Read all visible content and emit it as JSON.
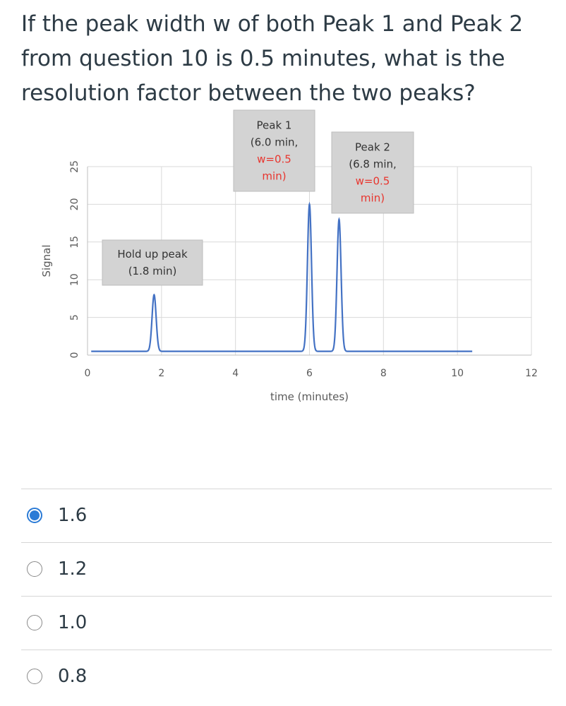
{
  "question": {
    "text": "If the peak width w of both Peak 1 and Peak 2 from question 10 is 0.5 minutes, what is the resolution factor between the two peaks?"
  },
  "chart_data": {
    "type": "line",
    "xlabel": "time (minutes)",
    "ylabel": "Signal",
    "xlim": [
      0,
      12
    ],
    "ylim": [
      0,
      25
    ],
    "xticks": [
      "0",
      "2",
      "4",
      "6",
      "8",
      "10",
      "12"
    ],
    "yticks": [
      "0",
      "5",
      "10",
      "15",
      "20",
      "25"
    ],
    "grid": true,
    "line_color": "#4472c4",
    "series": [
      {
        "peaks": [
          {
            "center": 1.8,
            "height": 8
          },
          {
            "center": 6.0,
            "height": 20
          },
          {
            "center": 6.8,
            "height": 18
          }
        ],
        "baseline": 0.5,
        "x_start": 0.1,
        "x_end": 10.4
      }
    ],
    "annotations": [
      {
        "lines": [
          "Hold up peak",
          "(1.8 min)"
        ],
        "red_lines": []
      },
      {
        "lines": [
          "Peak 1",
          "(6.0 min,",
          "w=0.5",
          "min)"
        ],
        "red_lines": [
          2,
          3
        ]
      },
      {
        "lines": [
          "Peak 2",
          "(6.8 min,",
          "w=0.5",
          "min)"
        ],
        "red_lines": [
          2,
          3
        ]
      }
    ],
    "annotation_red_color": "#e8352e"
  },
  "options": [
    {
      "label": "1.6",
      "selected": true
    },
    {
      "label": "1.2",
      "selected": false
    },
    {
      "label": "1.0",
      "selected": false
    },
    {
      "label": "0.8",
      "selected": false
    }
  ],
  "colors": {
    "accent": "#2b7bd6"
  }
}
